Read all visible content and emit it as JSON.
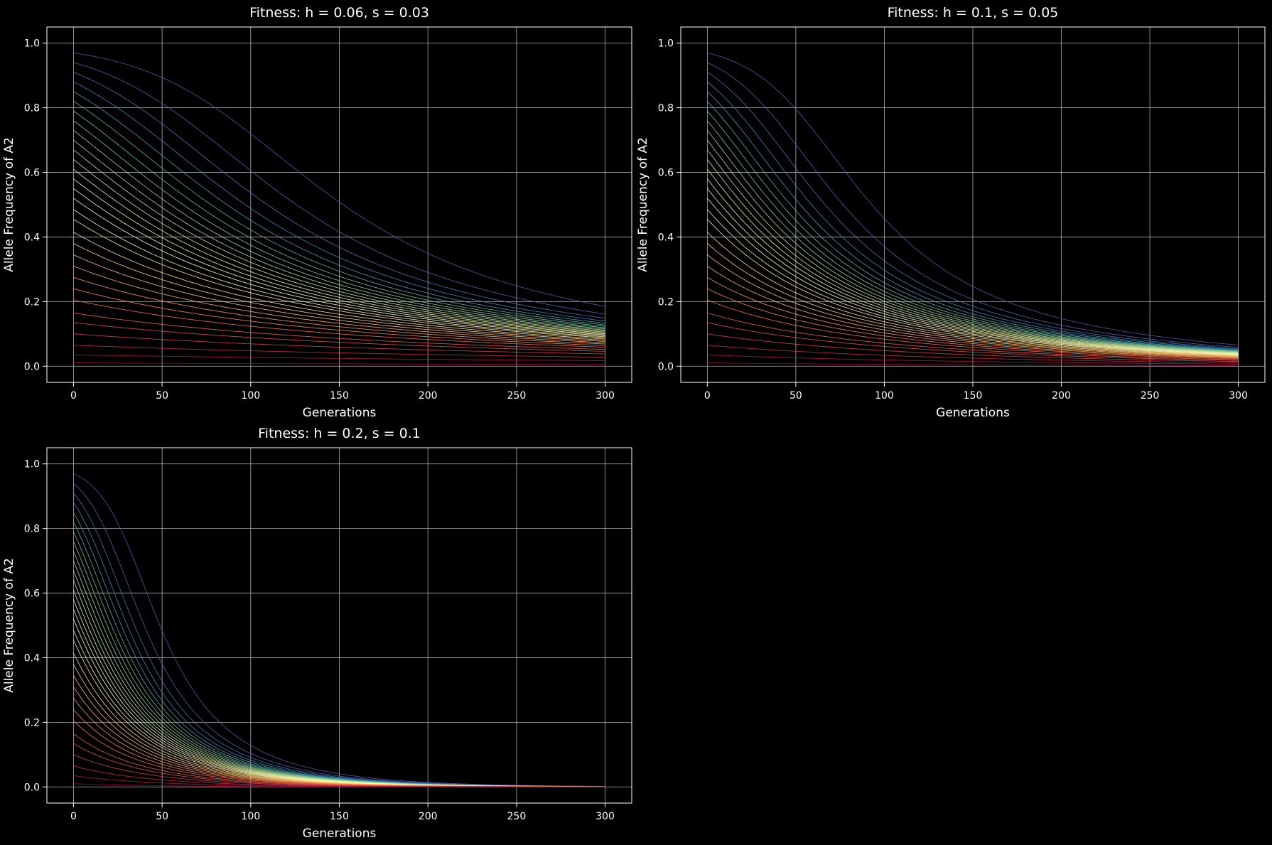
{
  "chart_data": [
    {
      "type": "line",
      "title": "Fitness: h = 0.06, s = 0.03",
      "h": 0.06,
      "s": 0.03,
      "xlabel": "Generations",
      "ylabel": "Allele Frequency of A2",
      "xlim": [
        -15,
        315
      ],
      "ylim": [
        -0.05,
        1.05
      ],
      "xticks": [
        0,
        50,
        100,
        150,
        200,
        250,
        300
      ],
      "yticks": [
        0.0,
        0.2,
        0.4,
        0.6,
        0.8,
        1.0
      ],
      "grid": true,
      "generations": 300,
      "initial_frequencies": [
        0.03,
        0.06,
        0.09,
        0.12,
        0.15,
        0.18,
        0.21,
        0.24,
        0.27,
        0.3,
        0.33,
        0.36,
        0.39,
        0.42,
        0.45,
        0.48,
        0.515,
        0.545,
        0.585,
        0.62,
        0.655,
        0.69,
        0.725,
        0.76,
        0.795,
        0.835,
        0.865,
        0.9,
        0.935,
        0.965,
        0.99
      ]
    },
    {
      "type": "line",
      "title": "Fitness: h = 0.1, s = 0.05",
      "h": 0.1,
      "s": 0.05,
      "xlabel": "Generations",
      "ylabel": "Allele Frequency of A2",
      "xlim": [
        -15,
        315
      ],
      "ylim": [
        -0.05,
        1.05
      ],
      "xticks": [
        0,
        50,
        100,
        150,
        200,
        250,
        300
      ],
      "yticks": [
        0.0,
        0.2,
        0.4,
        0.6,
        0.8,
        1.0
      ],
      "grid": true,
      "generations": 300,
      "initial_frequencies": [
        0.03,
        0.06,
        0.09,
        0.12,
        0.15,
        0.18,
        0.21,
        0.24,
        0.27,
        0.3,
        0.33,
        0.36,
        0.39,
        0.42,
        0.45,
        0.48,
        0.515,
        0.545,
        0.585,
        0.62,
        0.655,
        0.69,
        0.725,
        0.76,
        0.795,
        0.835,
        0.865,
        0.9,
        0.935,
        0.965,
        0.99
      ]
    },
    {
      "type": "line",
      "title": "Fitness: h = 0.2, s = 0.1",
      "h": 0.2,
      "s": 0.1,
      "xlabel": "Generations",
      "ylabel": "Allele Frequency of A2",
      "xlim": [
        -15,
        315
      ],
      "ylim": [
        -0.05,
        1.05
      ],
      "xticks": [
        0,
        50,
        100,
        150,
        200,
        250,
        300
      ],
      "yticks": [
        0.0,
        0.2,
        0.4,
        0.6,
        0.8,
        1.0
      ],
      "grid": true,
      "generations": 300,
      "initial_frequencies": [
        0.03,
        0.06,
        0.09,
        0.12,
        0.15,
        0.18,
        0.21,
        0.24,
        0.27,
        0.3,
        0.33,
        0.36,
        0.39,
        0.42,
        0.45,
        0.48,
        0.515,
        0.545,
        0.585,
        0.62,
        0.655,
        0.69,
        0.725,
        0.76,
        0.795,
        0.835,
        0.865,
        0.9,
        0.935,
        0.965,
        0.99
      ]
    }
  ],
  "colors": {
    "background": "#000000",
    "foreground": "#ffffff",
    "grid": "#b0b0b0",
    "colormap": "Spectral_r"
  }
}
